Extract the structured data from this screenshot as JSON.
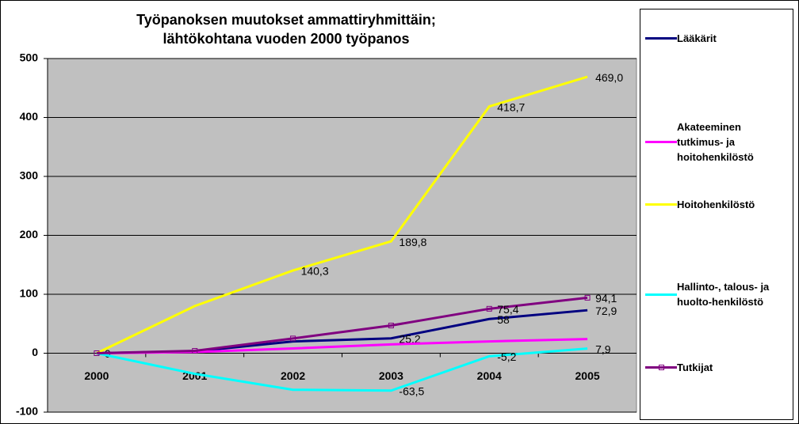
{
  "chart_data": {
    "type": "line",
    "title": [
      "Työpanoksen muutokset ammattiryhmittäin;",
      "lähtökohtana vuoden 2000 työpanos"
    ],
    "categories": [
      "2000",
      "2001",
      "2002",
      "2003",
      "2004",
      "2005"
    ],
    "ylim": [
      -100,
      500
    ],
    "yticks": [
      -100,
      0,
      100,
      200,
      300,
      400,
      500
    ],
    "grid": true,
    "legend": "right",
    "series": [
      {
        "name": "Lääkärit",
        "color": "#000080",
        "values": [
          0,
          3,
          20,
          25.2,
          58,
          72.9
        ],
        "value_labels": [
          "0",
          null,
          null,
          "25,2",
          "58",
          "72,9"
        ]
      },
      {
        "name": "Akateeminen tutkimus- ja hoitohenkilöstö",
        "color": "#ff00ff",
        "values": [
          0,
          2,
          8,
          15,
          20,
          24
        ],
        "value_labels": [
          null,
          null,
          null,
          null,
          null,
          null
        ]
      },
      {
        "name": "Hoitohenkilöstö",
        "color": "#ffff00",
        "values": [
          0,
          80,
          140.3,
          189.8,
          418.7,
          469.0
        ],
        "value_labels": [
          null,
          null,
          "140,3",
          "189,8",
          "418,7",
          "469,0"
        ]
      },
      {
        "name": "Hallinto-, talous- ja huolto-henkilöstö",
        "color": "#00ffff",
        "values": [
          0,
          -35,
          -62,
          -63.5,
          -5.2,
          7.9
        ],
        "value_labels": [
          null,
          null,
          null,
          "-63,5",
          "-5,2",
          "7,9"
        ]
      },
      {
        "name": "Tutkijat",
        "color": "#800080",
        "values": [
          0,
          4,
          25,
          47,
          75.4,
          94.1
        ],
        "markers": true,
        "value_labels": [
          null,
          null,
          null,
          null,
          "75,4",
          "94,1"
        ]
      }
    ]
  }
}
